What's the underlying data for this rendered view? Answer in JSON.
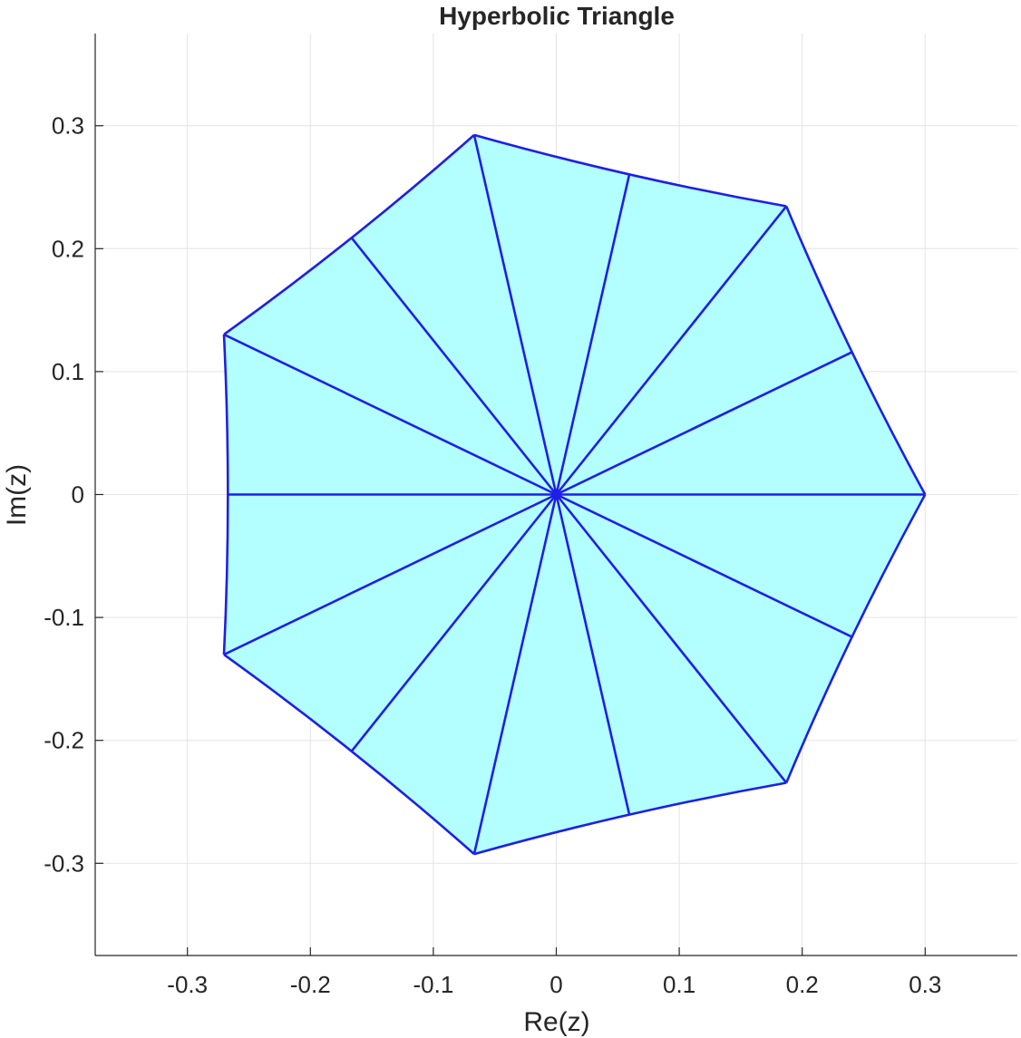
{
  "chart_data": {
    "type": "line",
    "title": "Hyperbolic Triangle",
    "xlabel": "Re(z)",
    "ylabel": "Im(z)",
    "xlim": [
      -0.375,
      0.375
    ],
    "ylim": [
      -0.375,
      0.375
    ],
    "grid": true,
    "x_ticks": [
      -0.3,
      -0.2,
      -0.1,
      0,
      0.1,
      0.2,
      0.3
    ],
    "y_ticks": [
      -0.3,
      -0.2,
      -0.1,
      0,
      0.1,
      0.2,
      0.3
    ],
    "x_tick_labels": [
      "-0.3",
      "-0.2",
      "-0.1",
      "0",
      "0.1",
      "0.2",
      "0.3"
    ],
    "y_tick_labels": [
      "-0.3",
      "-0.2",
      "-0.1",
      "0",
      "0.1",
      "0.2",
      "0.3"
    ],
    "fill_color": "#b3ffff",
    "edge_color": "#1f1fe6",
    "grid_color": "#e3e3e3",
    "center": [
      0,
      0
    ],
    "vertices": [
      [
        0.3,
        0
      ],
      [
        0.1871,
        0.2345
      ],
      [
        -0.0668,
        0.2925
      ],
      [
        -0.2703,
        0.1302
      ],
      [
        -0.2703,
        -0.1302
      ],
      [
        -0.0668,
        -0.2925
      ],
      [
        0.1871,
        -0.2345
      ]
    ],
    "edge_midpoints": [
      [
        0.2405,
        0.1158
      ],
      [
        0.0594,
        0.2604
      ],
      [
        -0.1665,
        0.2088
      ],
      [
        -0.2671,
        0
      ],
      [
        -0.1665,
        -0.2088
      ],
      [
        0.0594,
        -0.2604
      ],
      [
        0.2405,
        -0.1158
      ]
    ]
  }
}
